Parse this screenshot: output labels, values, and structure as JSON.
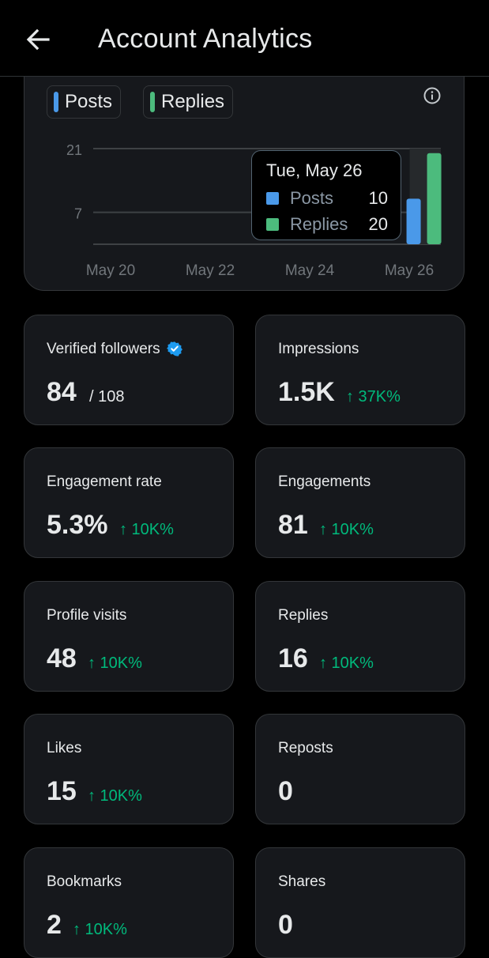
{
  "header": {
    "title": "Account Analytics",
    "back_icon": "arrow-left-icon"
  },
  "legend": [
    {
      "label": "Posts",
      "color": "#4a99e9"
    },
    {
      "label": "Replies",
      "color": "#4cbb7d"
    }
  ],
  "chart_data": {
    "type": "bar",
    "y_ticks": [
      "21",
      "7"
    ],
    "y_tick_values": [
      21,
      7
    ],
    "ylim": [
      0,
      21
    ],
    "x_tick_labels": [
      "May 20",
      "May 22",
      "May 24",
      "May 26"
    ],
    "categories": [
      "May 20",
      "May 21",
      "May 22",
      "May 23",
      "May 24",
      "May 25",
      "May 26"
    ],
    "series": [
      {
        "name": "Posts",
        "color": "#4a99e9",
        "values": [
          0,
          0,
          0,
          0,
          0,
          0,
          10
        ]
      },
      {
        "name": "Replies",
        "color": "#4cbb7d",
        "values": [
          0,
          0,
          0,
          0,
          0,
          0,
          20
        ]
      }
    ],
    "highlight_index": 6,
    "tooltip": {
      "date": "Tue, May 26",
      "rows": [
        {
          "name": "Posts",
          "value": "10",
          "color": "#4a99e9"
        },
        {
          "name": "Replies",
          "value": "20",
          "color": "#4cbb7d"
        }
      ]
    }
  },
  "stats": [
    {
      "label": "Verified followers",
      "value": "84",
      "total": "/ 108",
      "verified": true
    },
    {
      "label": "Impressions",
      "value": "1.5K",
      "change": "↑ 37K%"
    },
    {
      "label": "Engagement rate",
      "value": "5.3%",
      "change": "↑ 10K%"
    },
    {
      "label": "Engagements",
      "value": "81",
      "change": "↑ 10K%"
    },
    {
      "label": "Profile visits",
      "value": "48",
      "change": "↑ 10K%"
    },
    {
      "label": "Replies",
      "value": "16",
      "change": "↑ 10K%"
    },
    {
      "label": "Likes",
      "value": "15",
      "change": "↑ 10K%"
    },
    {
      "label": "Reposts",
      "value": "0"
    },
    {
      "label": "Bookmarks",
      "value": "2",
      "change": "↑ 10K%"
    },
    {
      "label": "Shares",
      "value": "0"
    }
  ],
  "colors": {
    "accent_blue": "#1d9bf0",
    "positive": "#00ba7c",
    "card_bg": "#16181c"
  }
}
